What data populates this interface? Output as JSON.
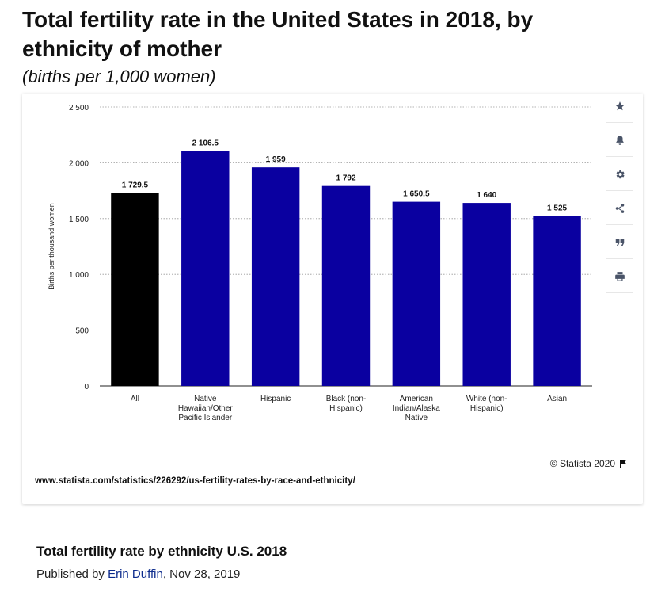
{
  "header": {
    "title": "Total fertility rate in the United States in 2018, by ethnicity of mother",
    "subtitle": "(births per 1,000 women)"
  },
  "toolbar": {
    "icons": [
      "star-icon",
      "bell-icon",
      "gear-icon",
      "share-icon",
      "quote-icon",
      "print-icon"
    ]
  },
  "chart_data": {
    "type": "bar",
    "categories": [
      "All",
      "Native Hawaiian/Other Pacific Islander",
      "Hispanic",
      "Black (non-Hispanic)",
      "American Indian/Alaska Native",
      "White (non-Hispanic)",
      "Asian"
    ],
    "category_lines": [
      [
        "All"
      ],
      [
        "Native",
        "Hawaiian/Other",
        "Pacific Islander"
      ],
      [
        "Hispanic"
      ],
      [
        "Black (non-",
        "Hispanic)"
      ],
      [
        "American",
        "Indian/Alaska",
        "Native"
      ],
      [
        "White (non-",
        "Hispanic)"
      ],
      [
        "Asian"
      ]
    ],
    "values": [
      1729.5,
      2106.5,
      1959,
      1792,
      1650.5,
      1640,
      1525
    ],
    "value_labels": [
      "1 729.5",
      "2 106.5",
      "1 959",
      "1 792",
      "1 650.5",
      "1 640",
      "1 525"
    ],
    "colors": [
      "#000000",
      "#0a00a0",
      "#0a00a0",
      "#0a00a0",
      "#0a00a0",
      "#0a00a0",
      "#0a00a0"
    ],
    "ylabel": "Births per thousand women",
    "ylim": [
      0,
      2500
    ],
    "yticks": [
      0,
      500,
      1000,
      1500,
      2000,
      2500
    ],
    "ytick_labels": [
      "0",
      "500",
      "1 000",
      "1 500",
      "2 000",
      "2 500"
    ],
    "grid": true
  },
  "card": {
    "copyright": "© Statista 2020",
    "source_url": "www.statista.com/statistics/226292/us-fertility-rates-by-race-and-ethnicity/"
  },
  "footer": {
    "title": "Total fertility rate by ethnicity U.S. 2018",
    "published_prefix": "Published by",
    "author": "Erin Duffin",
    "date_suffix": ", Nov 28, 2019"
  }
}
